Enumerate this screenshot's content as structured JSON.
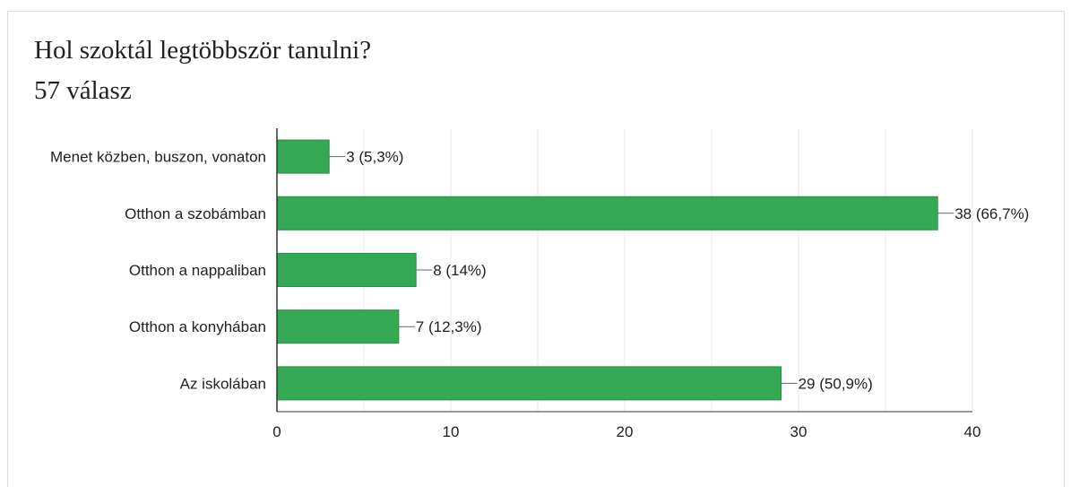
{
  "header": {
    "question": "Hol szoktál legtöbbször tanulni?",
    "responses": "57 válasz"
  },
  "colors": {
    "bar": "#34a853",
    "bar_stroke": "#2b8c45",
    "grid": "#e8e8e8",
    "axis": "#333333",
    "text": "#202124",
    "card_border": "#dadce0"
  },
  "chart_data": {
    "type": "bar",
    "orientation": "horizontal",
    "categories": [
      "Menet közben, buszon, vonaton",
      "Otthon a szobámban",
      "Otthon a nappaliban",
      "Otthon a konyhában",
      "Az iskolában"
    ],
    "values": [
      3,
      38,
      8,
      7,
      29
    ],
    "value_labels": [
      "3 (5,3%)",
      "38 (66,7%)",
      "8 (14%)",
      "7 (12,3%)",
      "29 (50,9%)"
    ],
    "xticks": [
      0,
      10,
      20,
      30,
      40
    ],
    "xlim": [
      0,
      40
    ],
    "grid": true,
    "legend": false
  }
}
